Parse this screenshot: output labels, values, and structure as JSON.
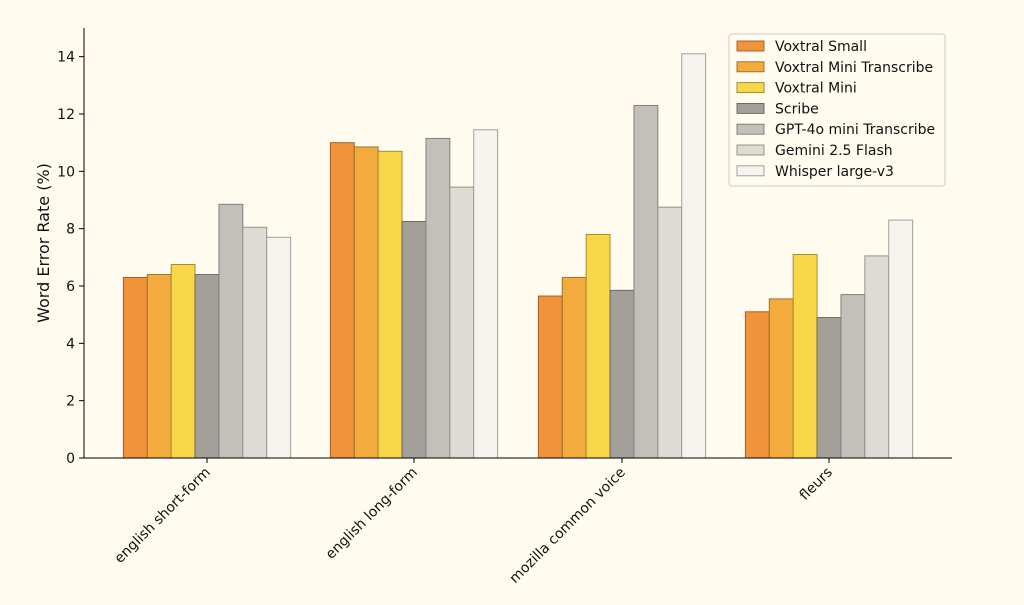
{
  "chart_data": {
    "type": "bar",
    "title": "",
    "xlabel": "",
    "ylabel": "Word Error Rate (%)",
    "ylim": [
      0,
      15
    ],
    "yticks": [
      0,
      2,
      4,
      6,
      8,
      10,
      12,
      14
    ],
    "ytick_labels": [
      "0",
      "2",
      "4",
      "6",
      "8",
      "10",
      "12",
      "14"
    ],
    "grid": false,
    "legend_position": "top-right",
    "categories": [
      "english short-form",
      "english long-form",
      "mozilla common voice",
      "fleurs"
    ],
    "series": [
      {
        "name": "Voxtral Small",
        "color": "#f0933a",
        "values": [
          6.3,
          11.0,
          5.65,
          5.1
        ]
      },
      {
        "name": "Voxtral Mini Transcribe",
        "color": "#f2ab3c",
        "values": [
          6.4,
          10.85,
          6.3,
          5.55
        ]
      },
      {
        "name": "Voxtral Mini",
        "color": "#f7d64a",
        "values": [
          6.75,
          10.7,
          7.8,
          7.1
        ]
      },
      {
        "name": "Scribe",
        "color": "#a39f99",
        "values": [
          6.4,
          8.25,
          5.85,
          4.9
        ]
      },
      {
        "name": "GPT-4o mini Transcribe",
        "color": "#c3c0b9",
        "values": [
          8.85,
          11.15,
          12.3,
          5.7
        ]
      },
      {
        "name": "Gemini 2.5 Flash",
        "color": "#dedbd5",
        "values": [
          8.05,
          9.45,
          8.75,
          7.05
        ]
      },
      {
        "name": "Whisper large-v3",
        "color": "#f5f3ee",
        "values": [
          7.7,
          11.45,
          14.1,
          8.3
        ]
      }
    ]
  }
}
